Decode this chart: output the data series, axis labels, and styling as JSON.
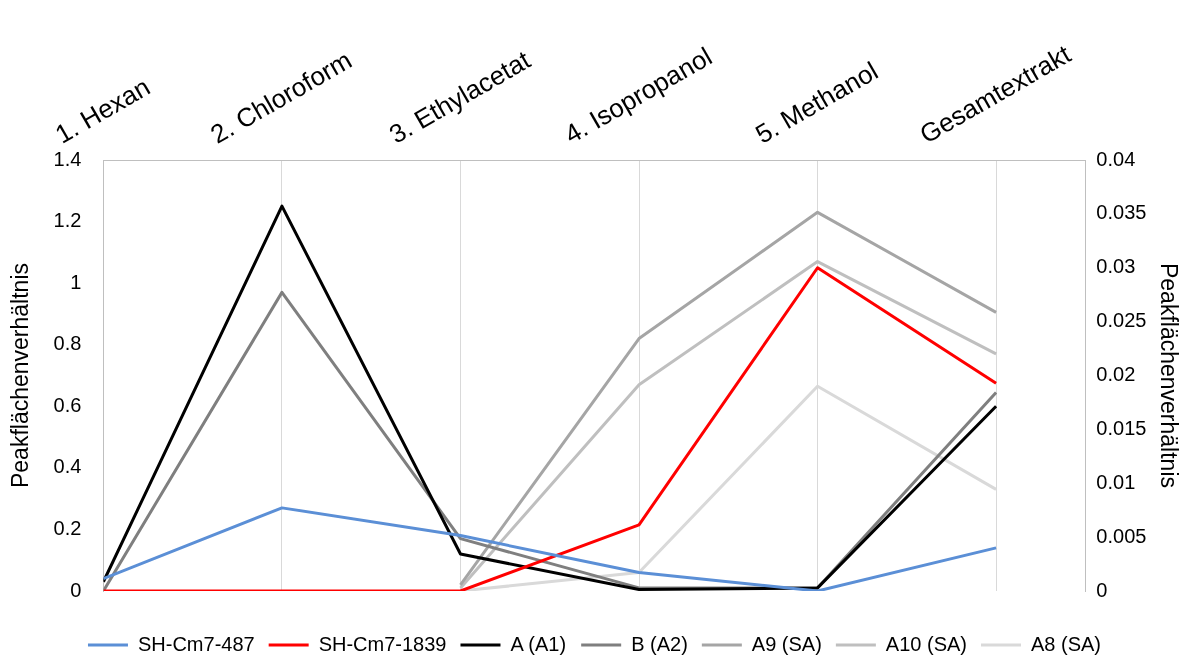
{
  "chart_data": {
    "type": "line",
    "categories": [
      "1. Hexan",
      "2. Chloroform",
      "3. Ethylacetat",
      "4. Isopropanol",
      "5. Methanol",
      "Gesamtextrakt"
    ],
    "ylabel": "Peakflächenverhältnis",
    "y2label": "Peakflächenverhältnis",
    "ylim": [
      0,
      1.4
    ],
    "yticks": [
      0,
      0.2,
      0.4,
      0.6,
      0.8,
      1,
      1.2,
      1.4
    ],
    "y2lim": [
      0,
      0.04
    ],
    "y2ticks": [
      0,
      0.005,
      0.01,
      0.015,
      0.02,
      0.025,
      0.03,
      0.035,
      0.04
    ],
    "grid": "x",
    "legend": "bottom",
    "marker": "none",
    "line_style": "solid",
    "series": [
      {
        "name": "SH-Cm7-487",
        "color": "#5b8fd6",
        "values": [
          0.04,
          0.27,
          0.18,
          0.06,
          0.0,
          0.14
        ]
      },
      {
        "name": "SH-Cm7-1839",
        "color": "#ff0000",
        "values": [
          0.0,
          0.0,
          0.0,
          0.215,
          1.05,
          0.675
        ]
      },
      {
        "name": "A (A1)",
        "color": "#000000",
        "values": [
          0.03,
          1.25,
          0.12,
          0.005,
          0.01,
          0.6
        ]
      },
      {
        "name": "B (A2)",
        "color": "#7f7f7f",
        "values": [
          0.0,
          0.97,
          0.17,
          0.01,
          0.01,
          0.645
        ]
      },
      {
        "name": "A9 (SA)",
        "color": "#a5a5a5",
        "values": [
          null,
          null,
          0.02,
          0.82,
          1.23,
          0.905
        ]
      },
      {
        "name": "A10 (SA)",
        "color": "#bfbfbf",
        "values": [
          null,
          null,
          0.01,
          0.67,
          1.07,
          0.77
        ]
      },
      {
        "name": "A8 (SA)",
        "color": "#d9d9d9",
        "values": [
          null,
          null,
          0.0,
          0.06,
          0.665,
          0.33
        ]
      }
    ]
  }
}
